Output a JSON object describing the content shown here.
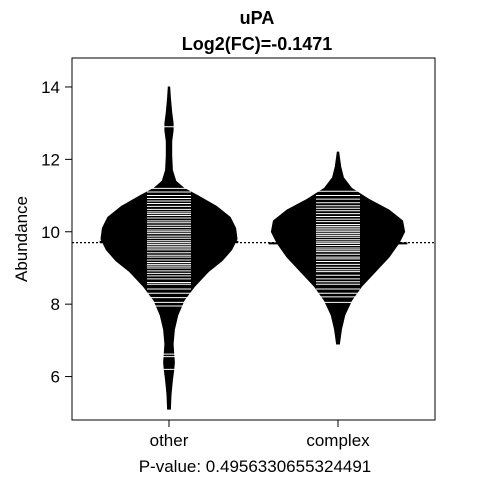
{
  "chart_data": {
    "type": "beanplot",
    "title": "uPA",
    "subtitle": "Log2(FC)=-0.1471",
    "xlabel": "P-value: 0.4956330655324491",
    "ylabel": "Abundance",
    "categories": [
      "other",
      "complex"
    ],
    "ylim": [
      4.8,
      14.8
    ],
    "yticks": [
      6,
      8,
      10,
      12,
      14
    ],
    "overall_mean": 9.7,
    "grid": false,
    "series": [
      {
        "category": "other",
        "group_mean": 9.72,
        "outline": [
          [
            5.1,
            0.02
          ],
          [
            5.5,
            0.03
          ],
          [
            5.9,
            0.05
          ],
          [
            6.2,
            0.07
          ],
          [
            6.4,
            0.08
          ],
          [
            6.6,
            0.07
          ],
          [
            6.9,
            0.06
          ],
          [
            7.3,
            0.08
          ],
          [
            7.7,
            0.13
          ],
          [
            8.1,
            0.22
          ],
          [
            8.5,
            0.38
          ],
          [
            8.9,
            0.58
          ],
          [
            9.2,
            0.78
          ],
          [
            9.5,
            0.92
          ],
          [
            9.8,
            1.0
          ],
          [
            10.1,
            0.98
          ],
          [
            10.4,
            0.9
          ],
          [
            10.7,
            0.7
          ],
          [
            11.0,
            0.42
          ],
          [
            11.2,
            0.22
          ],
          [
            11.4,
            0.1
          ],
          [
            11.7,
            0.05
          ],
          [
            12.1,
            0.04
          ],
          [
            12.5,
            0.04
          ],
          [
            12.8,
            0.06
          ],
          [
            13.0,
            0.06
          ],
          [
            13.3,
            0.04
          ],
          [
            13.7,
            0.02
          ],
          [
            14.0,
            0.01
          ]
        ],
        "points": [
          6.2,
          6.55,
          6.62,
          7.95,
          8.05,
          8.18,
          8.3,
          8.42,
          8.55,
          8.6,
          8.7,
          8.78,
          8.85,
          8.92,
          9.0,
          9.05,
          9.1,
          9.15,
          9.22,
          9.3,
          9.35,
          9.42,
          9.5,
          9.55,
          9.6,
          9.65,
          9.7,
          9.75,
          9.82,
          9.88,
          9.95,
          10.0,
          10.05,
          10.12,
          10.18,
          10.25,
          10.3,
          10.38,
          10.45,
          10.5,
          10.55,
          10.62,
          10.7,
          10.78,
          10.85,
          10.92,
          11.0,
          11.1,
          11.2,
          12.9
        ]
      },
      {
        "category": "complex",
        "group_mean": 9.68,
        "outline": [
          [
            6.9,
            0.02
          ],
          [
            7.3,
            0.05
          ],
          [
            7.7,
            0.1
          ],
          [
            8.1,
            0.2
          ],
          [
            8.5,
            0.35
          ],
          [
            8.9,
            0.55
          ],
          [
            9.3,
            0.75
          ],
          [
            9.7,
            0.9
          ],
          [
            10.0,
            0.98
          ],
          [
            10.3,
            0.95
          ],
          [
            10.6,
            0.75
          ],
          [
            10.9,
            0.45
          ],
          [
            11.2,
            0.2
          ],
          [
            11.5,
            0.08
          ],
          [
            11.8,
            0.04
          ],
          [
            12.2,
            0.01
          ]
        ],
        "points": [
          8.05,
          8.2,
          8.3,
          8.42,
          8.55,
          8.62,
          8.7,
          8.8,
          8.9,
          8.95,
          9.02,
          9.1,
          9.18,
          9.25,
          9.3,
          9.38,
          9.45,
          9.5,
          9.55,
          9.62,
          9.68,
          9.72,
          9.78,
          9.85,
          9.9,
          9.95,
          10.0,
          10.05,
          10.1,
          10.15,
          10.2,
          10.28,
          10.35,
          10.42,
          10.5,
          10.58,
          10.65,
          10.72,
          10.8,
          10.9,
          11.0,
          11.12
        ]
      }
    ]
  }
}
